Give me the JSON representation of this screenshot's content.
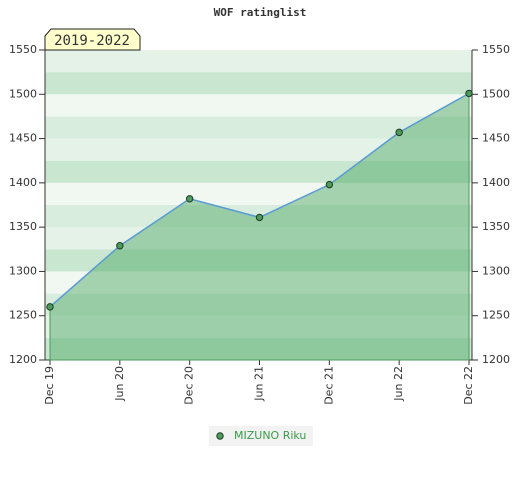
{
  "chart_data": {
    "type": "area",
    "title": "WOF ratinglist",
    "annotation": "2019-2022",
    "categories": [
      "Dec 19",
      "Jun 20",
      "Dec 20",
      "Jun 21",
      "Dec 21",
      "Jun 22",
      "Dec 22"
    ],
    "series": [
      {
        "name": "MIZUNO Riku",
        "color": "#5b9bd5",
        "marker_color": "#4c9a5c",
        "values": [
          1260,
          1329,
          1382,
          1361,
          1398,
          1457,
          1501
        ]
      }
    ],
    "ylim": [
      1200,
      1550
    ],
    "yticks": [
      1200,
      1250,
      1300,
      1350,
      1400,
      1450,
      1500,
      1550
    ],
    "y2lim": [
      1200,
      1550
    ],
    "y2ticks": [
      1200,
      1250,
      1300,
      1350,
      1400,
      1450,
      1500,
      1550
    ],
    "legend": "bottom"
  }
}
